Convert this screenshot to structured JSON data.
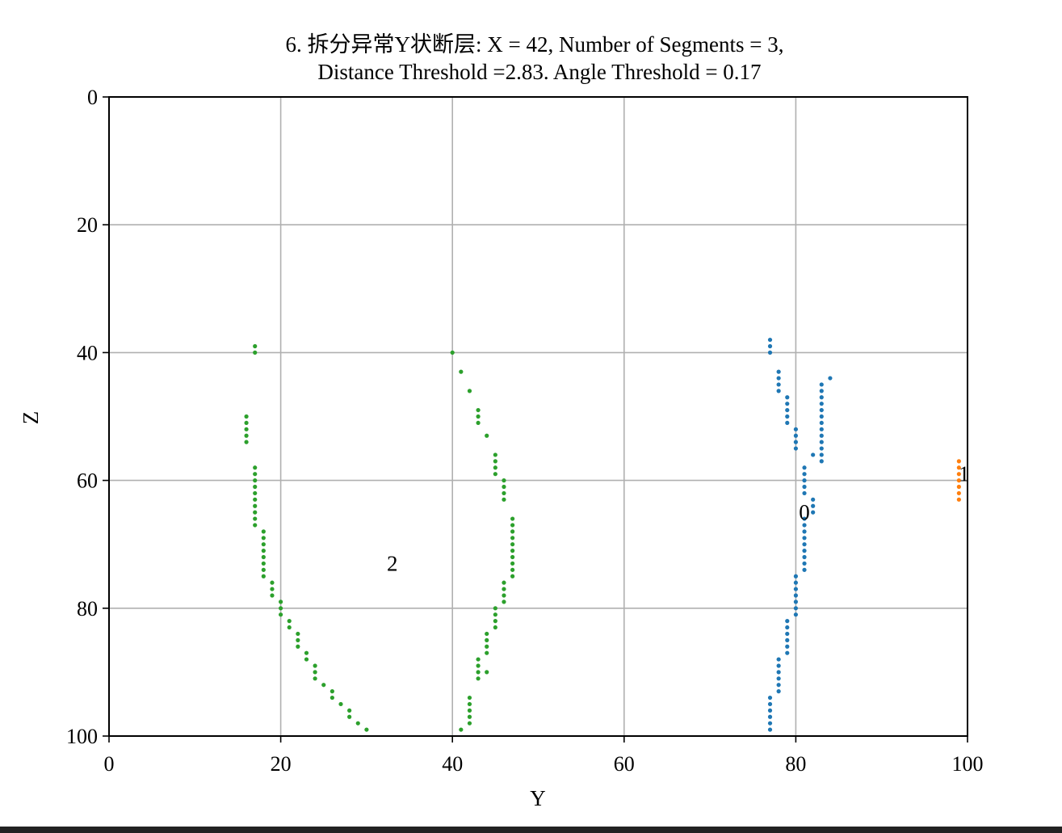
{
  "chart_data": {
    "type": "scatter",
    "title": "6. 拆分异常Y状断层: X = 42, Number of Segments = 3,",
    "subtitle": "Distance Threshold =2.83. Angle Threshold = 0.17",
    "xlabel": "Y",
    "ylabel": "Z",
    "xlim": [
      0,
      100
    ],
    "ylim": [
      100,
      0
    ],
    "y_inverted": true,
    "grid": true,
    "xticks": [
      "0",
      "20",
      "40",
      "60",
      "80",
      "100"
    ],
    "yticks": [
      "0",
      "20",
      "40",
      "60",
      "80",
      "100"
    ],
    "series": [
      {
        "label": "0",
        "label_pos": [
          81,
          65
        ],
        "color": "#1f77b4",
        "points": [
          [
            77,
            38
          ],
          [
            77,
            39
          ],
          [
            77,
            40
          ],
          [
            78,
            43
          ],
          [
            78,
            44
          ],
          [
            78,
            45
          ],
          [
            78,
            46
          ],
          [
            79,
            47
          ],
          [
            79,
            48
          ],
          [
            79,
            49
          ],
          [
            79,
            50
          ],
          [
            79,
            51
          ],
          [
            80,
            52
          ],
          [
            80,
            53
          ],
          [
            80,
            54
          ],
          [
            80,
            55
          ],
          [
            84,
            44
          ],
          [
            83,
            45
          ],
          [
            83,
            46
          ],
          [
            83,
            47
          ],
          [
            83,
            48
          ],
          [
            83,
            49
          ],
          [
            83,
            50
          ],
          [
            83,
            51
          ],
          [
            83,
            52
          ],
          [
            83,
            53
          ],
          [
            83,
            54
          ],
          [
            83,
            55
          ],
          [
            83,
            56
          ],
          [
            83,
            57
          ],
          [
            82,
            56
          ],
          [
            81,
            58
          ],
          [
            81,
            59
          ],
          [
            81,
            60
          ],
          [
            81,
            61
          ],
          [
            81,
            62
          ],
          [
            82,
            63
          ],
          [
            82,
            64
          ],
          [
            82,
            65
          ],
          [
            81,
            66
          ],
          [
            81,
            67
          ],
          [
            81,
            68
          ],
          [
            81,
            69
          ],
          [
            81,
            70
          ],
          [
            81,
            71
          ],
          [
            81,
            72
          ],
          [
            81,
            73
          ],
          [
            81,
            74
          ],
          [
            80,
            75
          ],
          [
            80,
            76
          ],
          [
            80,
            77
          ],
          [
            80,
            78
          ],
          [
            80,
            79
          ],
          [
            80,
            80
          ],
          [
            80,
            81
          ],
          [
            79,
            82
          ],
          [
            79,
            83
          ],
          [
            79,
            84
          ],
          [
            79,
            85
          ],
          [
            79,
            86
          ],
          [
            79,
            87
          ],
          [
            78,
            88
          ],
          [
            78,
            89
          ],
          [
            78,
            90
          ],
          [
            78,
            91
          ],
          [
            78,
            92
          ],
          [
            78,
            93
          ],
          [
            77,
            94
          ],
          [
            77,
            95
          ],
          [
            77,
            96
          ],
          [
            77,
            97
          ],
          [
            77,
            98
          ],
          [
            77,
            99
          ]
        ]
      },
      {
        "label": "1",
        "label_pos": [
          99.6,
          59
        ],
        "color": "#ff7f0e",
        "points": [
          [
            99,
            57
          ],
          [
            99,
            58
          ],
          [
            99,
            59
          ],
          [
            99,
            60
          ],
          [
            99,
            61
          ],
          [
            99,
            62
          ],
          [
            99,
            63
          ]
        ]
      },
      {
        "label": "2",
        "label_pos": [
          33,
          73
        ],
        "color": "#2ca02c",
        "points": [
          [
            17,
            39
          ],
          [
            17,
            40
          ],
          [
            16,
            50
          ],
          [
            16,
            51
          ],
          [
            16,
            52
          ],
          [
            16,
            53
          ],
          [
            16,
            54
          ],
          [
            17,
            58
          ],
          [
            17,
            59
          ],
          [
            17,
            60
          ],
          [
            17,
            61
          ],
          [
            17,
            62
          ],
          [
            17,
            63
          ],
          [
            17,
            64
          ],
          [
            17,
            65
          ],
          [
            17,
            66
          ],
          [
            17,
            67
          ],
          [
            18,
            68
          ],
          [
            18,
            69
          ],
          [
            18,
            70
          ],
          [
            18,
            71
          ],
          [
            18,
            72
          ],
          [
            18,
            73
          ],
          [
            18,
            74
          ],
          [
            18,
            75
          ],
          [
            19,
            76
          ],
          [
            19,
            77
          ],
          [
            19,
            78
          ],
          [
            20,
            79
          ],
          [
            20,
            80
          ],
          [
            20,
            81
          ],
          [
            21,
            82
          ],
          [
            21,
            83
          ],
          [
            22,
            84
          ],
          [
            22,
            85
          ],
          [
            22,
            86
          ],
          [
            23,
            87
          ],
          [
            23,
            88
          ],
          [
            24,
            89
          ],
          [
            24,
            90
          ],
          [
            24,
            91
          ],
          [
            25,
            92
          ],
          [
            26,
            93
          ],
          [
            26,
            94
          ],
          [
            27,
            95
          ],
          [
            28,
            96
          ],
          [
            28,
            97
          ],
          [
            29,
            98
          ],
          [
            30,
            99
          ],
          [
            40,
            40
          ],
          [
            41,
            43
          ],
          [
            42,
            46
          ],
          [
            43,
            49
          ],
          [
            43,
            50
          ],
          [
            43,
            51
          ],
          [
            44,
            53
          ],
          [
            45,
            56
          ],
          [
            45,
            57
          ],
          [
            45,
            58
          ],
          [
            45,
            59
          ],
          [
            46,
            60
          ],
          [
            46,
            61
          ],
          [
            46,
            62
          ],
          [
            46,
            63
          ],
          [
            47,
            66
          ],
          [
            47,
            67
          ],
          [
            47,
            68
          ],
          [
            47,
            69
          ],
          [
            47,
            70
          ],
          [
            47,
            71
          ],
          [
            47,
            72
          ],
          [
            47,
            73
          ],
          [
            47,
            74
          ],
          [
            47,
            75
          ],
          [
            46,
            76
          ],
          [
            46,
            77
          ],
          [
            46,
            78
          ],
          [
            46,
            79
          ],
          [
            45,
            80
          ],
          [
            45,
            81
          ],
          [
            45,
            82
          ],
          [
            45,
            83
          ],
          [
            44,
            84
          ],
          [
            44,
            85
          ],
          [
            44,
            86
          ],
          [
            44,
            87
          ],
          [
            43,
            88
          ],
          [
            43,
            89
          ],
          [
            43,
            90
          ],
          [
            43,
            91
          ],
          [
            44,
            90
          ],
          [
            42,
            94
          ],
          [
            42,
            95
          ],
          [
            42,
            96
          ],
          [
            42,
            97
          ],
          [
            42,
            98
          ],
          [
            41,
            99
          ]
        ]
      }
    ]
  }
}
